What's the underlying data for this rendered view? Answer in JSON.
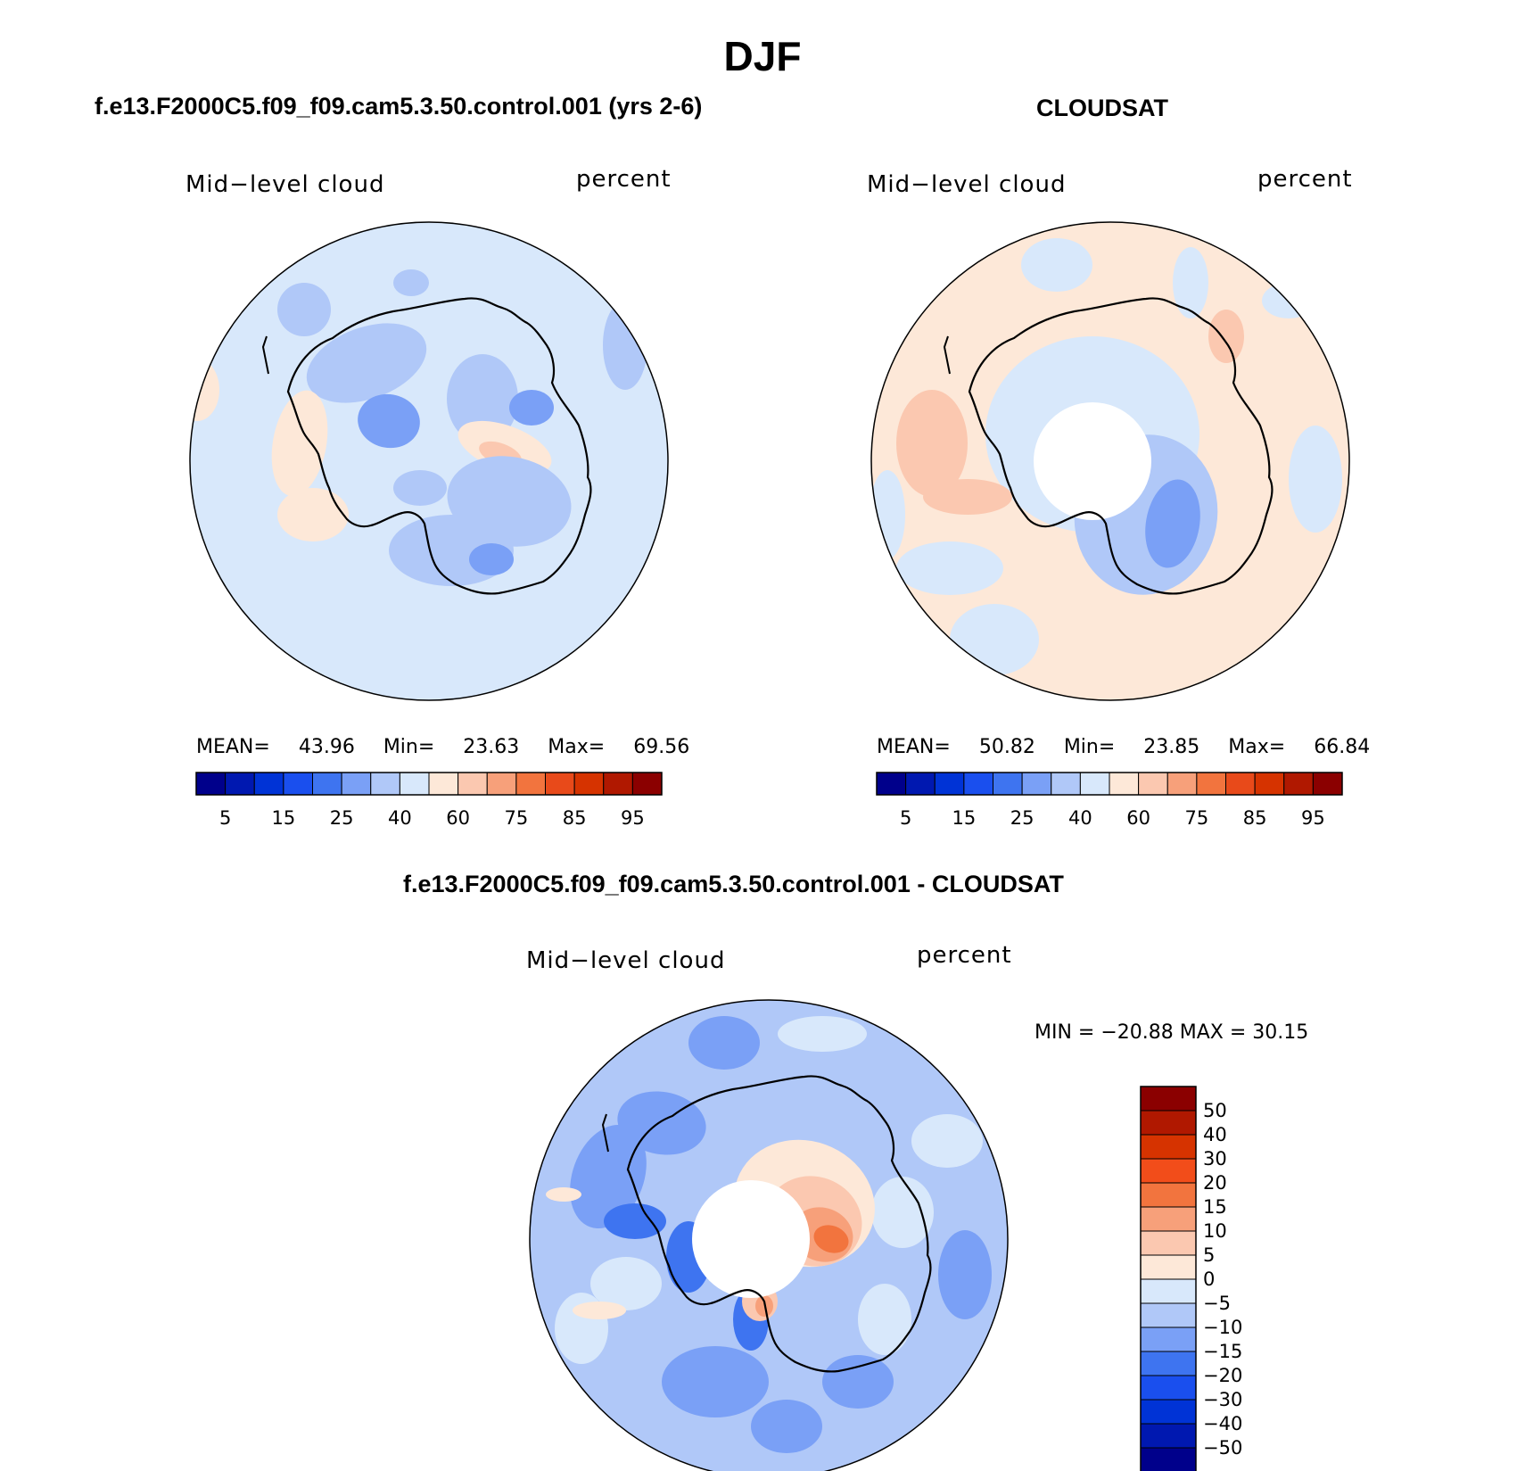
{
  "figure": {
    "season": "DJF"
  },
  "panels": [
    {
      "id": "model",
      "title": "f.e13.F2000C5.f09_f09.cam5.3.50.control.001 (yrs 2-6)",
      "left_label": "Mid−level cloud",
      "right_label": "percent",
      "stats": {
        "mean_label": "MEAN=",
        "mean": "43.96",
        "min_label": "Min=",
        "min": "23.63",
        "max_label": "Max=",
        "max": "69.56"
      }
    },
    {
      "id": "obs",
      "title": "CLOUDSAT",
      "left_label": "Mid−level cloud",
      "right_label": "percent",
      "stats": {
        "mean_label": "MEAN=",
        "mean": "50.82",
        "min_label": "Min=",
        "min": "23.85",
        "max_label": "Max=",
        "max": "66.84"
      }
    },
    {
      "id": "diff",
      "title": "f.e13.F2000C5.f09_f09.cam5.3.50.control.001 - CLOUDSAT",
      "left_label": "Mid−level cloud",
      "right_label": "percent",
      "minmax_text": "MIN = −20.88 MAX =   30.15"
    }
  ],
  "colorbars": {
    "absolute": {
      "colors": [
        "#00008b",
        "#0018b0",
        "#0033d6",
        "#1a4fee",
        "#3e74f0",
        "#7aa0f6",
        "#b0c8f8",
        "#d8e8fb",
        "#fde8d8",
        "#fbc8b0",
        "#f7a07a",
        "#f2743e",
        "#e84a1a",
        "#d63300",
        "#b01800",
        "#8b0000"
      ],
      "tick_labels": [
        "5",
        "15",
        "25",
        "40",
        "60",
        "75",
        "85",
        "95"
      ]
    },
    "difference": {
      "colors_top_to_bottom": [
        "#8b0000",
        "#b01800",
        "#d63300",
        "#f24d1a",
        "#f2743e",
        "#f7a07a",
        "#fbc8b0",
        "#fde8d8",
        "#d8e8fb",
        "#b0c8f8",
        "#7aa0f6",
        "#3e74f0",
        "#1a4fee",
        "#0033d6",
        "#0018b0",
        "#00008b"
      ],
      "tick_labels": [
        "50",
        "40",
        "30",
        "20",
        "15",
        "10",
        "5",
        "0",
        "−5",
        "−10",
        "−15",
        "−20",
        "−30",
        "−40",
        "−50"
      ]
    }
  },
  "map_colors": {
    "model_background": "#d8e8fb",
    "model_negative": "#b0c8f8",
    "model_strong_negative": "#7aa0f6",
    "model_positive": "#fde8d8",
    "model_strong_positive": "#fbc8b0",
    "obs_background": "#fde8d8",
    "obs_negative": "#d8e8fb",
    "obs_mid": "#b0c8f8",
    "obs_strong": "#7aa0f6",
    "obs_positive_strong": "#fbc8b0",
    "diff_background": "#b0c8f8",
    "diff_light": "#d8e8fb",
    "diff_mid": "#7aa0f6",
    "diff_dark": "#3e74f0",
    "diff_pos_light": "#fde8d8",
    "diff_pos_mid": "#fbc8b0",
    "diff_pos_strong": "#f7a07a",
    "diff_pos_max": "#f2743e",
    "missing": "#ffffff",
    "coast": "#000000"
  }
}
